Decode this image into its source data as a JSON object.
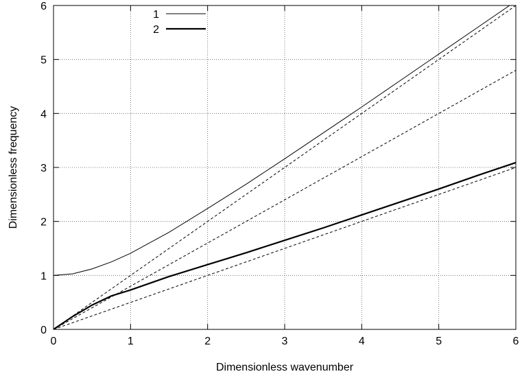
{
  "chart_data": {
    "type": "line",
    "xlabel": "Dimensionless wavenumber",
    "ylabel": "Dimensionless frequency",
    "xlim": [
      0,
      6
    ],
    "ylim": [
      0,
      6
    ],
    "xticks": [
      "0",
      "1",
      "2",
      "3",
      "4",
      "5",
      "6"
    ],
    "yticks": [
      "0",
      "1",
      "2",
      "3",
      "4",
      "5",
      "6"
    ],
    "grid": true,
    "legend_position": "top-left",
    "series": [
      {
        "name": "1",
        "style": "thin-solid",
        "x": [
          0,
          0.25,
          0.5,
          0.75,
          1,
          1.5,
          2,
          2.5,
          3,
          3.5,
          4,
          4.5,
          5,
          5.5,
          6
        ],
        "values": [
          1.0,
          1.03,
          1.12,
          1.25,
          1.41,
          1.8,
          2.24,
          2.69,
          3.16,
          3.64,
          4.12,
          4.61,
          5.1,
          5.59,
          6.08
        ]
      },
      {
        "name": "2",
        "style": "thick-solid",
        "x": [
          0,
          0.25,
          0.5,
          0.75,
          1,
          1.5,
          2,
          2.5,
          3,
          3.5,
          4,
          4.5,
          5,
          5.5,
          6
        ],
        "values": [
          0,
          0.24,
          0.45,
          0.62,
          0.73,
          0.98,
          1.2,
          1.42,
          1.65,
          1.88,
          2.12,
          2.36,
          2.6,
          2.85,
          3.09
        ]
      },
      {
        "style": "dashed",
        "x": [
          0,
          6
        ],
        "values": [
          0,
          6
        ]
      },
      {
        "style": "dashed",
        "x": [
          0,
          6
        ],
        "values": [
          0,
          4.8
        ]
      },
      {
        "style": "dashed",
        "x": [
          0,
          6
        ],
        "values": [
          0,
          3.0
        ]
      }
    ]
  }
}
